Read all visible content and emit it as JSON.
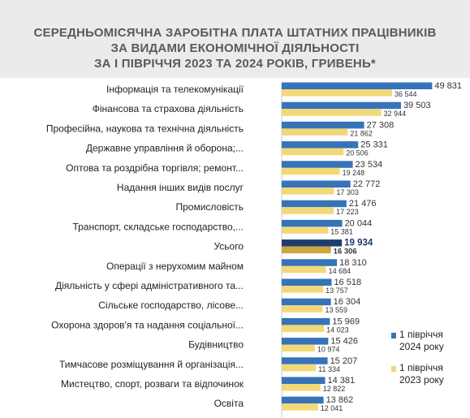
{
  "title": {
    "line1": "СЕРЕДНЬОМІСЯЧНА ЗАРОБІТНА ПЛАТА ШТАТНИХ ПРАЦІВНИКІВ",
    "line2": "ЗА ВИДАМИ ЕКОНОМІЧНОЇ ДІЯЛЬНОСТІ",
    "line3": "ЗА І ПІВРІЧЧЯ 2023 ТА 2024 РОКІВ, ГРИВЕНЬ*"
  },
  "legend": {
    "s2024_line1": "1 півріччя",
    "s2024_line2": "2024 року",
    "s2023_line1": "1 півріччя",
    "s2023_line2": "2023 року"
  },
  "colors": {
    "s2024": "#3673b8",
    "s2023": "#f2d878",
    "total2024": "#1e3d6e",
    "total2023": "#c9a640",
    "label": "#222222",
    "value": "#333333"
  },
  "chart_data": {
    "type": "bar",
    "orientation": "horizontal",
    "title": "СЕРЕДНЬОМІСЯЧНА ЗАРОБІТНА ПЛАТА ШТАТНИХ ПРАЦІВНИКІВ ЗА ВИДАМИ ЕКОНОМІЧНОЇ ДІЯЛЬНОСТІ ЗА І ПІВРІЧЧЯ 2023 ТА 2024 РОКІВ, ГРИВЕНЬ*",
    "categories": [
      "Інформація та телекомунікації",
      "Фінансова та страхова діяльність",
      "Професійна, наукова та технічна діяльність",
      "Державне управління й оборона;...",
      "Оптова та роздрібна торгівля; ремонт...",
      "Надання інших видів послуг",
      "Промисловість",
      "Транспорт, складське господарство,...",
      "Усього",
      "Операції з нерухомим майном",
      "Діяльність у сфері адміністративного та...",
      "Сільське господарство, лісове...",
      "Охорона здоров'я та надання соціальної...",
      "Будівництво",
      "Тимчасове розміщування й організація...",
      "Мистецтво, спорт, розваги та відпочинок",
      "Освіта"
    ],
    "series": [
      {
        "name": "1 півріччя 2024 року",
        "values": [
          49831,
          39503,
          27308,
          25331,
          23534,
          22772,
          21476,
          20044,
          19934,
          18310,
          16518,
          16304,
          15969,
          15426,
          15207,
          14381,
          13862
        ],
        "labels": [
          "49 831",
          "39 503",
          "27 308",
          "25 331",
          "23 534",
          "22 772",
          "21 476",
          "20 044",
          "19 934",
          "18 310",
          "16 518",
          "16 304",
          "15 969",
          "15 426",
          "15 207",
          "14 381",
          "13 862"
        ]
      },
      {
        "name": "1 півріччя 2023 року",
        "values": [
          36544,
          32944,
          21862,
          20506,
          19248,
          17303,
          17223,
          15381,
          16306,
          14684,
          13757,
          13559,
          14023,
          10974,
          11334,
          12822,
          12041
        ],
        "labels": [
          "36 544",
          "32 944",
          "21 862",
          "20 506",
          "19 248",
          "17 303",
          "17 223",
          "15 381",
          "16 306",
          "14 684",
          "13 757",
          "13 559",
          "14 023",
          "10 974",
          "11 334",
          "12 822",
          "12 041"
        ]
      }
    ],
    "highlight_category": "Усього",
    "xlim": [
      0,
      50000
    ],
    "grid": false,
    "legend_position": "right"
  }
}
